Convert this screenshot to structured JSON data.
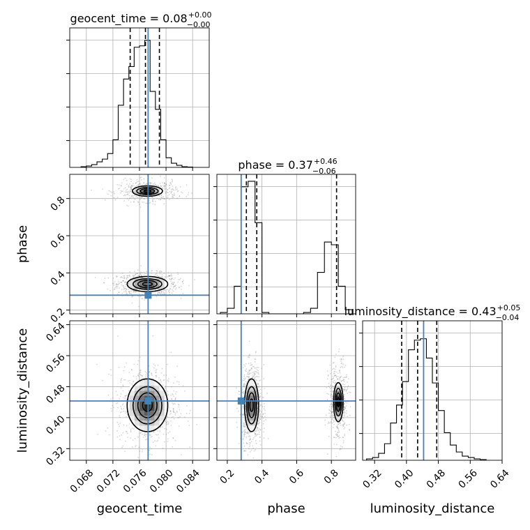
{
  "chart_data": [
    {
      "type": "histogram",
      "panel": "geocent_time-1d",
      "title_name": "geocent_time",
      "title_value": "0.08",
      "title_plus": "+0.00",
      "title_minus": "−0.00",
      "xlim": [
        0.0655,
        0.0865
      ],
      "ylim": [
        0,
        1.0
      ],
      "x_ticks": [
        "0.068",
        "0.072",
        "0.076",
        "0.080",
        "0.084"
      ],
      "x_tick_values": [
        0.068,
        0.072,
        0.076,
        0.08,
        0.084
      ],
      "bin_edges": [
        0.0672,
        0.068,
        0.0688,
        0.0696,
        0.0704,
        0.0712,
        0.072,
        0.0728,
        0.0736,
        0.0744,
        0.0752,
        0.076,
        0.0768,
        0.0776,
        0.0784,
        0.0792,
        0.08,
        0.0808,
        0.0816,
        0.0824,
        0.0832,
        0.084
      ],
      "counts": [
        0.005,
        0.01,
        0.02,
        0.04,
        0.06,
        0.1,
        0.2,
        0.45,
        0.64,
        0.73,
        0.87,
        0.88,
        0.92,
        0.55,
        0.42,
        0.2,
        0.07,
        0.03,
        0.015,
        0.005,
        0.002
      ],
      "quantiles": [
        0.0746,
        0.0769,
        0.079
      ],
      "truth": 0.0773
    },
    {
      "type": "histogram",
      "panel": "phase-1d",
      "title_name": "phase",
      "title_value": "0.37",
      "title_plus": "+0.46",
      "title_minus": "−0.06",
      "xlim": [
        0.14,
        0.94
      ],
      "ylim": [
        0,
        1.0
      ],
      "bin_edges": [
        0.16,
        0.2,
        0.24,
        0.28,
        0.32,
        0.36,
        0.4,
        0.44,
        0.48,
        0.52,
        0.56,
        0.6,
        0.64,
        0.68,
        0.72,
        0.76,
        0.8,
        0.84,
        0.88,
        0.92
      ],
      "counts": [
        0.01,
        0.04,
        0.2,
        0.92,
        0.96,
        0.66,
        0.01,
        0.0,
        0.0,
        0.0,
        0.0,
        0.0,
        0.01,
        0.04,
        0.3,
        0.52,
        0.5,
        0.2,
        0.03
      ],
      "quantiles": [
        0.31,
        0.37,
        0.83
      ],
      "truth": 0.28
    },
    {
      "type": "histogram",
      "panel": "luminosity_distance-1d",
      "title_name": "luminosity_distance",
      "title_value": "0.43",
      "title_plus": "+0.05",
      "title_minus": "−0.04",
      "xlim": [
        0.29,
        0.64
      ],
      "ylim": [
        0,
        1.0
      ],
      "x_ticks": [
        "0.32",
        "0.40",
        "0.48",
        "0.56",
        "0.64"
      ],
      "x_tick_values": [
        0.32,
        0.4,
        0.48,
        0.56,
        0.64
      ],
      "bin_edges": [
        0.3,
        0.315,
        0.33,
        0.345,
        0.36,
        0.375,
        0.39,
        0.405,
        0.42,
        0.435,
        0.45,
        0.465,
        0.48,
        0.495,
        0.51,
        0.525,
        0.54,
        0.555,
        0.57,
        0.585,
        0.6
      ],
      "counts": [
        0.01,
        0.02,
        0.05,
        0.12,
        0.27,
        0.4,
        0.57,
        0.8,
        0.87,
        0.88,
        0.74,
        0.56,
        0.36,
        0.2,
        0.11,
        0.06,
        0.03,
        0.02,
        0.01,
        0.005
      ],
      "quantiles": [
        0.388,
        0.428,
        0.476
      ],
      "truth": 0.443
    },
    {
      "type": "contour",
      "panel": "geocent_time-vs-phase",
      "xlim": [
        0.0655,
        0.0865
      ],
      "ylim": [
        0.18,
        0.93
      ],
      "y_ticks": [
        "0.2",
        "0.4",
        "0.6",
        "0.8"
      ],
      "y_tick_values": [
        0.2,
        0.4,
        0.6,
        0.8
      ],
      "ylabel": "phase",
      "modes": [
        {
          "x": 0.0772,
          "y": 0.34,
          "sx": 0.0018,
          "sy": 0.024,
          "weight": 1.0
        },
        {
          "x": 0.0772,
          "y": 0.84,
          "sx": 0.0018,
          "sy": 0.022,
          "weight": 0.55
        }
      ],
      "contour_levels": [
        0.4,
        0.8,
        1.2,
        1.7
      ],
      "truth": [
        0.0773,
        0.28
      ]
    },
    {
      "type": "contour",
      "panel": "geocent_time-vs-luminosity_distance",
      "xlim": [
        0.0655,
        0.0865
      ],
      "ylim": [
        0.29,
        0.65
      ],
      "x_ticks": [
        "0.068",
        "0.072",
        "0.076",
        "0.080",
        "0.084"
      ],
      "x_tick_values": [
        0.068,
        0.072,
        0.076,
        0.08,
        0.084
      ],
      "y_ticks": [
        "0.32",
        "0.40",
        "0.48",
        "0.56",
        "0.64"
      ],
      "y_tick_values": [
        0.32,
        0.4,
        0.48,
        0.56,
        0.64
      ],
      "xlabel": "geocent_time",
      "ylabel": "luminosity_distance",
      "modes": [
        {
          "x": 0.0772,
          "y": 0.432,
          "sx": 0.0018,
          "sy": 0.04,
          "weight": 1.0
        }
      ],
      "contour_levels": [
        0.4,
        0.8,
        1.2,
        1.7
      ],
      "truth": [
        0.0773,
        0.443
      ]
    },
    {
      "type": "contour",
      "panel": "phase-vs-luminosity_distance",
      "xlim": [
        0.14,
        0.94
      ],
      "ylim": [
        0.29,
        0.65
      ],
      "x_ticks": [
        "0.2",
        "0.4",
        "0.6",
        "0.8"
      ],
      "x_tick_values": [
        0.2,
        0.4,
        0.6,
        0.8
      ],
      "xlabel": "phase",
      "modes": [
        {
          "x": 0.34,
          "y": 0.432,
          "sx": 0.024,
          "sy": 0.04,
          "weight": 1.0
        },
        {
          "x": 0.84,
          "y": 0.44,
          "sx": 0.022,
          "sy": 0.04,
          "weight": 0.55
        }
      ],
      "contour_levels": [
        0.4,
        0.8,
        1.2,
        1.7
      ],
      "truth": [
        0.28,
        0.443
      ]
    }
  ],
  "colors": {
    "truth": "#4682b4",
    "hist": "#000000",
    "grid": "#b0b0b0"
  }
}
